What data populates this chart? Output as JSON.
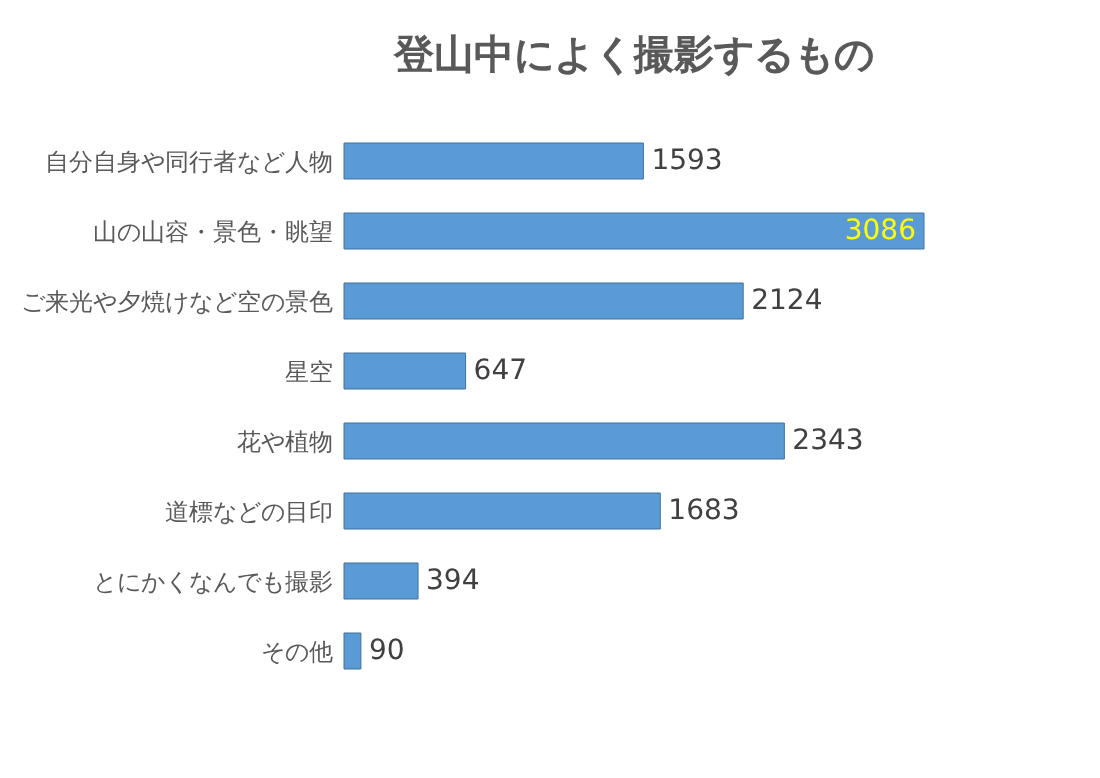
{
  "chart_data": {
    "type": "bar",
    "orientation": "horizontal",
    "title": "登山中によく撮影するもの",
    "categories": [
      "自分自身や同行者など人物",
      "山の山容・景色・眺望",
      "ご来光や夕焼けなど空の景色",
      "星空",
      "花や植物",
      "道標などの目印",
      "とにかくなんでも撮影",
      "その他"
    ],
    "values": [
      1593,
      3086,
      2124,
      647,
      2343,
      1683,
      394,
      90
    ],
    "color": "#5b9bd5",
    "data_labels": true,
    "grid": false
  }
}
